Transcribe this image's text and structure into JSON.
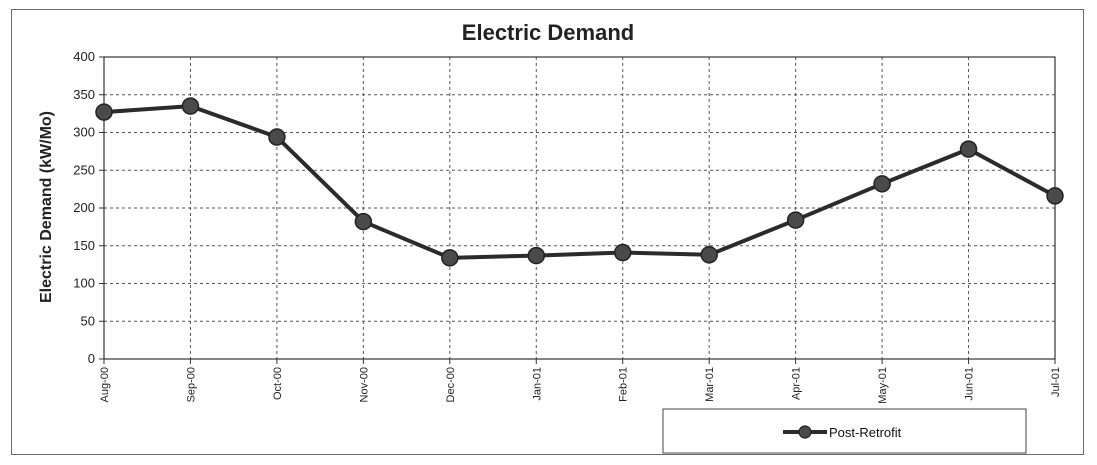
{
  "chart_data": {
    "type": "line",
    "title": "Electric Demand",
    "xlabel": "",
    "ylabel": "Electric Demand (kW/Mo)",
    "categories": [
      "Aug-00",
      "Sep-00",
      "Oct-00",
      "Nov-00",
      "Dec-00",
      "Jan-01",
      "Feb-01",
      "Mar-01",
      "Apr-01",
      "May-01",
      "Jun-01",
      "Jul-01"
    ],
    "series": [
      {
        "name": "Post-Retrofit",
        "values": [
          327,
          335,
          294,
          182,
          134,
          137,
          141,
          138,
          184,
          232,
          278,
          216
        ]
      }
    ],
    "ylim": [
      0,
      400
    ],
    "yticks": [
      0,
      50,
      100,
      150,
      200,
      250,
      300,
      350,
      400
    ],
    "grid": true,
    "legend_position": "bottom-right",
    "colors": {
      "line": "#2b2b2b",
      "marker": "#4a4a4a",
      "grid": "#555555"
    }
  }
}
